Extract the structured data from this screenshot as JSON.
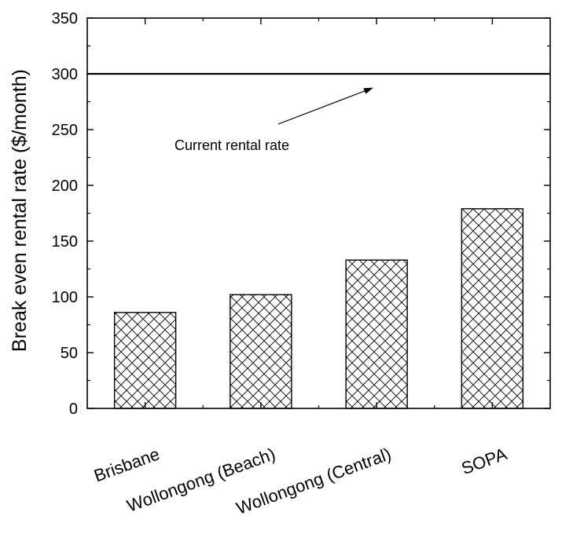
{
  "chart_data": {
    "type": "bar",
    "categories": [
      "Brisbane",
      "Wollongong (Beach)",
      "Wollongong (Central)",
      "SOPA"
    ],
    "values": [
      86,
      102,
      133,
      179
    ],
    "title": "",
    "xlabel": "",
    "ylabel": "Break even rental rate ($/month)",
    "ylim": [
      0,
      350
    ],
    "yticks": [
      0,
      50,
      100,
      150,
      200,
      250,
      300,
      350
    ],
    "grid": false,
    "bar_pattern": "crosshatch",
    "reference_line": {
      "value": 300,
      "label": "Current rental rate"
    },
    "colors": {
      "bar_stroke": "#000000",
      "bar_fill": "#ffffff",
      "axis": "#000000"
    }
  }
}
